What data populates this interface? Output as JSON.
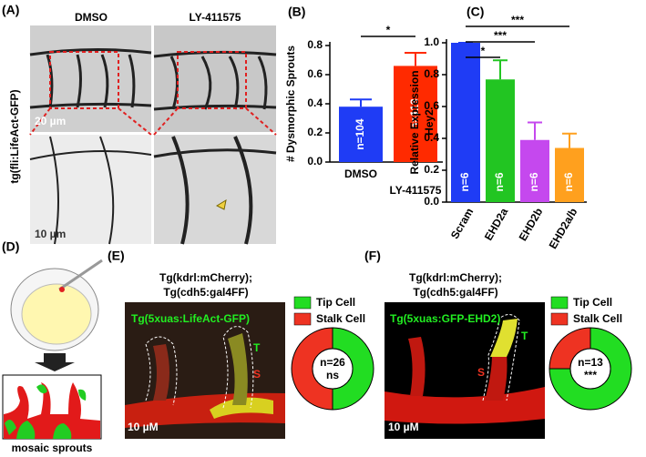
{
  "figure": {
    "panel_labels": [
      "(A)",
      "(B)",
      "(C)",
      "(D)",
      "(E)",
      "(F)"
    ],
    "a": {
      "columns": [
        "DMSO",
        "LY-411575"
      ],
      "row_label": "tg(fli:LifeAct-GFP)",
      "scale_top": "20 µm",
      "scale_bottom": "10 µm"
    },
    "d": {
      "caption": "mosaic sprouts"
    },
    "e": {
      "title": [
        "Tg(kdrl:mCherry);",
        "Tg(cdh5:gal4FF)"
      ],
      "image_label": "Tg(5xuas:LifeAct-GFP)",
      "tip": "T",
      "stalk": "S",
      "scale": "10 µM"
    },
    "f": {
      "title": [
        "Tg(kdrl:mCherry);",
        "Tg(cdh5:gal4FF)"
      ],
      "image_label": "Tg(5xuas:GFP-EHD2)",
      "tip": "T",
      "stalk": "S",
      "scale": "10 µM"
    }
  },
  "chart_data": [
    {
      "type": "bar",
      "ylabel": [
        "# Dysmorphic Sprouts"
      ],
      "categories": [
        "DMSO",
        "LY-411575"
      ],
      "values": [
        0.38,
        0.66
      ],
      "errors": [
        0.05,
        0.09
      ],
      "colors": [
        "#1f3cf5",
        "#ff2a00"
      ],
      "bar_labels": [
        "n=104",
        "n=113"
      ],
      "annotations": [
        "*"
      ],
      "ylim": [
        0,
        0.8
      ],
      "yticks": [
        {
          "value": 0,
          "label": "0.0"
        },
        {
          "value": 0.2,
          "label": "0.2"
        },
        {
          "value": 0.4,
          "label": "0.4"
        },
        {
          "value": 0.6,
          "label": "0.6"
        },
        {
          "value": 0.8,
          "label": "0.8"
        }
      ]
    },
    {
      "type": "bar",
      "ylabel": [
        "Relative Expression",
        "Hey2"
      ],
      "categories": [
        "Scram",
        "EHD2a",
        "EHD2b",
        "EHD2a/b"
      ],
      "values": [
        1.0,
        0.77,
        0.39,
        0.34
      ],
      "errors": [
        0,
        0.12,
        0.11,
        0.09
      ],
      "colors": [
        "#1f3cf5",
        "#22c522",
        "#c548ee",
        "#ffa01e"
      ],
      "bar_labels": [
        "n=6",
        "n=6",
        "n=6",
        "n=6"
      ],
      "annotations": [
        "***",
        "***",
        "*"
      ],
      "ylim": [
        0,
        1.0
      ],
      "yticks": [
        {
          "value": 0,
          "label": "0.0"
        },
        {
          "value": 0.2,
          "label": "0.2"
        },
        {
          "value": 0.4,
          "label": "0.4"
        },
        {
          "value": 0.6,
          "label": "0.6"
        },
        {
          "value": 0.8,
          "label": "0.8"
        },
        {
          "value": 1.0,
          "label": "1.0"
        }
      ]
    },
    {
      "type": "pie",
      "categories": [
        "Tip Cell",
        "Stalk Cell"
      ],
      "values": [
        50,
        50
      ],
      "colors": [
        "#22dd22",
        "#ee3322"
      ],
      "center_labels": [
        "n=26",
        "ns"
      ]
    },
    {
      "type": "pie",
      "categories": [
        "Tip Cell",
        "Stalk Cell"
      ],
      "values": [
        75,
        25
      ],
      "colors": [
        "#22dd22",
        "#ee3322"
      ],
      "center_labels": [
        "n=13",
        "***"
      ]
    }
  ]
}
